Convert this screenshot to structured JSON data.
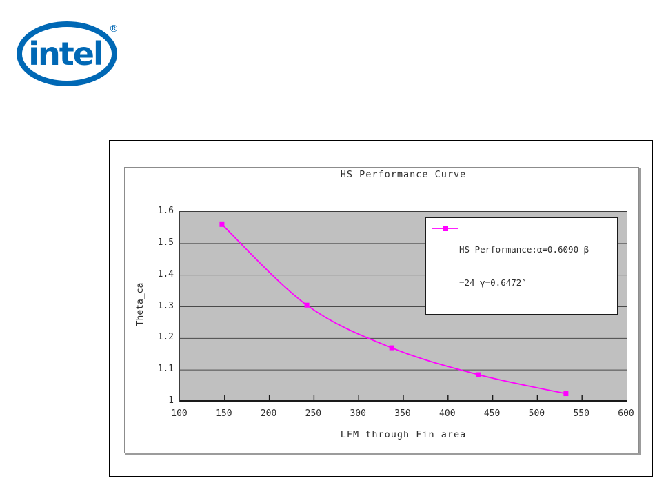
{
  "page": {
    "background": "#ffffff"
  },
  "logo": {
    "brand": "intel",
    "registered": "®",
    "color": "#0068b5"
  },
  "chart_data": {
    "type": "line",
    "title": "HS Performance Curve",
    "xlabel": "LFM through Fin area",
    "ylabel": "Theta_ca",
    "xlim": [
      100,
      600
    ],
    "ylim": [
      1,
      1.6
    ],
    "xticks": [
      100,
      150,
      200,
      250,
      300,
      350,
      400,
      450,
      500,
      550,
      600
    ],
    "yticks": [
      1,
      1.1,
      1.2,
      1.3,
      1.4,
      1.5,
      1.6
    ],
    "ytick_labels": [
      "1",
      "1.1",
      "1.2",
      "1.3",
      "1.4",
      "1.5",
      "1.6"
    ],
    "grid": "horizontal",
    "plot_bg": "#c0c0c0",
    "gridline_color": "#4a4a4a",
    "axis_color": "#1a1a1a",
    "legend_position": "top-right",
    "series": [
      {
        "name": "HS Performance:α=0.6090 β=24 γ=0.6472″",
        "color": "#ff00ff",
        "marker": "square",
        "smooth": true,
        "x": [
          147,
          242,
          337,
          434,
          532
        ],
        "y": [
          1.56,
          1.305,
          1.17,
          1.085,
          1.025
        ]
      }
    ],
    "legend_lines": [
      "HS Performance:α=0.6090 β",
      "=24 γ=0.6472″"
    ]
  }
}
